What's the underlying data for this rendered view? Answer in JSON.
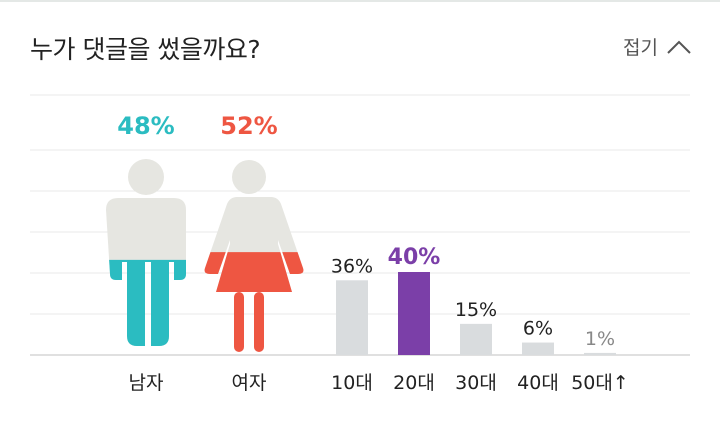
{
  "header": {
    "title": "누가 댓글을 썼을까요?",
    "toggle_label": "접기"
  },
  "colors": {
    "male": "#2bbcc1",
    "female": "#ee5642",
    "figure_body": "#e6e6e1",
    "highlight": "#7b3fa8",
    "bar": "#d9dcde",
    "grid": "#e8e8e8",
    "label": "#222222"
  },
  "chart_data": [
    {
      "type": "pictogram",
      "categories": [
        "남자",
        "여자"
      ],
      "values": [
        48,
        52
      ],
      "value_labels": [
        "48%",
        "52%"
      ],
      "unit": "%"
    },
    {
      "type": "bar",
      "categories": [
        "10대",
        "20대",
        "30대",
        "40대",
        "50대↑"
      ],
      "values": [
        36,
        40,
        15,
        6,
        1
      ],
      "value_labels": [
        "36%",
        "40%",
        "15%",
        "6%",
        "1%"
      ],
      "highlight_index": 1,
      "ylim": [
        0,
        40
      ],
      "grid": true
    }
  ]
}
